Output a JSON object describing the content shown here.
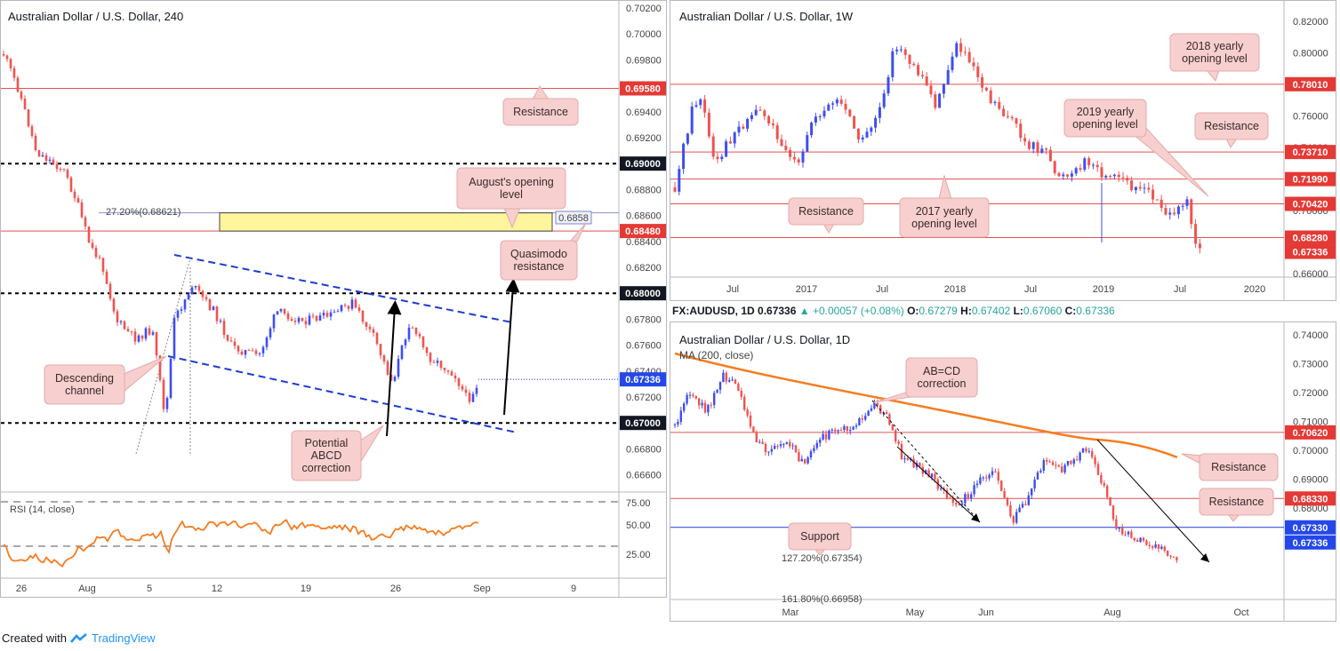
{
  "panels": {
    "h4": {
      "title": "Australian Dollar / U.S. Dollar, 240",
      "price_axis": [
        "0.70200",
        "0.70000",
        "0.69800",
        "0.69600",
        "0.69400",
        "0.69200",
        "0.69000",
        "0.68800",
        "0.68600",
        "0.68400",
        "0.68200",
        "0.68000",
        "0.67800",
        "0.67600",
        "0.67400",
        "0.67200",
        "0.67000",
        "0.66800",
        "0.66600"
      ],
      "time_axis": [
        "26",
        "Aug",
        "5",
        "12",
        "19",
        "26",
        "Sep",
        "9"
      ],
      "levels": [
        {
          "label": "0.69580",
          "kind": "red"
        },
        {
          "label": "0.69000",
          "kind": "black-dash"
        },
        {
          "label": "0.68480",
          "kind": "red"
        },
        {
          "label": "0.68000",
          "kind": "black-dash"
        },
        {
          "label": "0.67000",
          "kind": "black-dash"
        },
        {
          "label": "0.67336",
          "kind": "blue"
        }
      ],
      "fib_label": "27.20%(0.68621)",
      "zone_tag": "0.6858",
      "callouts": {
        "resistance": "Resistance",
        "august_open_1": "August's opening",
        "august_open_2": "level",
        "quasimodo_1": "Quasimodo",
        "quasimodo_2": "resistance",
        "descending_1": "Descending",
        "descending_2": "channel",
        "abcd_1": "Potential",
        "abcd_2": "ABCD",
        "abcd_3": "correction"
      },
      "rsi": {
        "label": "RSI (14, close)",
        "axis": [
          "75.00",
          "50.00",
          "25.00"
        ]
      }
    },
    "weekly": {
      "title": "Australian Dollar / U.S. Dollar, 1W",
      "price_axis": [
        "0.82000",
        "0.80000",
        "0.76000",
        "0.74000",
        "0.72000",
        "0.70000",
        "0.68000",
        "0.66000"
      ],
      "time_axis": [
        "Jul",
        "2017",
        "Jul",
        "2018",
        "Jul",
        "2019",
        "Jul",
        "2020"
      ],
      "levels": [
        {
          "label": "0.78010",
          "kind": "red"
        },
        {
          "label": "0.73710",
          "kind": "red"
        },
        {
          "label": "0.71990",
          "kind": "red"
        },
        {
          "label": "0.70420",
          "kind": "red"
        },
        {
          "label": "0.68280",
          "kind": "red"
        },
        {
          "label": "0.67336",
          "kind": "red"
        }
      ],
      "callouts": {
        "y2018_1": "2018 yearly",
        "y2018_2": "opening level",
        "y2019_1": "2019 yearly",
        "y2019_2": "opening level",
        "resistance_right": "Resistance",
        "resistance_left": "Resistance",
        "y2017_1": "2017 yearly",
        "y2017_2": "opening level"
      }
    },
    "daily": {
      "info": {
        "symbol": "FX:AUDUSD, 1D",
        "price": "0.67336",
        "change": "+0.00057 (+0.08%)",
        "o_label": "O:",
        "o": "0.67279",
        "h_label": "H:",
        "h": "0.67402",
        "l_label": "L:",
        "l": "0.67060",
        "c_label": "C:",
        "c": "0.67336"
      },
      "title": "Australian Dollar / U.S. Dollar, 1D",
      "ma_label": "MA (200, close)",
      "price_axis": [
        "0.74000",
        "0.73000",
        "0.72000",
        "0.71000",
        "0.70000",
        "0.69000",
        "0.68000"
      ],
      "time_axis": [
        "Mar",
        "May",
        "Jun",
        "Aug",
        "Oct"
      ],
      "levels": [
        {
          "label": "0.70620",
          "kind": "red"
        },
        {
          "label": "0.68330",
          "kind": "red"
        },
        {
          "label": "0.67330",
          "kind": "blue"
        },
        {
          "label": "0.67336",
          "kind": "blue"
        }
      ],
      "fib_label": "127.20%(0.67354)",
      "fib_label_2": "161.80%(0.66958)",
      "callouts": {
        "abcd_1": "AB=CD",
        "abcd_2": "correction",
        "resistance_1": "Resistance",
        "resistance_2": "Resistance",
        "support": "Support"
      }
    }
  },
  "footer": {
    "created_with": "Created with",
    "brand": "TradingView"
  },
  "colors": {
    "bull": "#3d4ef2",
    "bear": "#ef5350",
    "red_line": "#e05050",
    "ma": "#f57c20",
    "rsi": "#f57c20"
  },
  "chart_data": [
    {
      "type": "candlestick",
      "title": "Australian Dollar / U.S. Dollar, 240",
      "ylim": [
        0.665,
        0.702
      ],
      "x_ticks": [
        "26",
        "Aug",
        "5",
        "12",
        "19",
        "26",
        "Sep",
        "9"
      ],
      "horizontal_levels": [
        0.6958,
        0.69,
        0.6848,
        0.68,
        0.67
      ],
      "current_price": 0.67336,
      "zone": [
        0.6848,
        0.6862
      ],
      "indicator": {
        "name": "RSI (14, close)",
        "ylim": [
          0,
          100
        ],
        "levels": [
          75,
          50,
          25
        ]
      }
    },
    {
      "type": "candlestick",
      "title": "Australian Dollar / U.S. Dollar, 1W",
      "ylim": [
        0.645,
        0.825
      ],
      "x_ticks": [
        "Jul",
        "2017",
        "Jul",
        "2018",
        "Jul",
        "2019",
        "Jul",
        "2020"
      ],
      "horizontal_levels": [
        0.7801,
        0.7371,
        0.7199,
        0.7042,
        0.6828
      ],
      "current_price": 0.67336
    },
    {
      "type": "candlestick",
      "title": "Australian Dollar / U.S. Dollar, 1D",
      "ylim": [
        0.664,
        0.745
      ],
      "x_ticks": [
        "Mar",
        "May",
        "Jun",
        "Aug",
        "Oct"
      ],
      "horizontal_levels": [
        0.7062,
        0.6833,
        0.6733
      ],
      "current_price": 0.67336,
      "moving_average": {
        "name": "MA (200, close)"
      }
    }
  ]
}
